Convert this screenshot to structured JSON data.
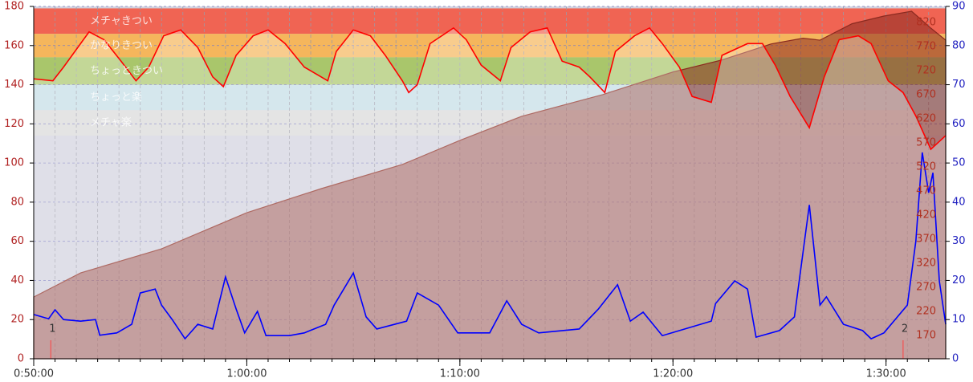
{
  "chart_data": {
    "type": "line",
    "xlim": [
      50,
      92.8
    ],
    "xticks": [
      {
        "value": 50,
        "label": "0:50:00"
      },
      {
        "value": 60,
        "label": "1:00:00"
      },
      {
        "value": 70,
        "label": "1:10:00"
      },
      {
        "value": 80,
        "label": "1:20:00"
      },
      {
        "value": 90,
        "label": "1:30:00"
      }
    ],
    "xminor_step": 1,
    "ylim": [
      0,
      180
    ],
    "yticks": [
      0,
      20,
      40,
      60,
      80,
      100,
      120,
      140,
      160,
      180
    ],
    "y2lim": [
      0,
      90
    ],
    "y2ticks": [
      0,
      10,
      20,
      30,
      40,
      50,
      60,
      70,
      80,
      90
    ],
    "y3lim": [
      122,
      853
    ],
    "y3ticks": [
      170,
      220,
      270,
      320,
      370,
      420,
      470,
      520,
      570,
      620,
      670,
      720,
      770,
      820
    ],
    "grid": true,
    "zones": [
      {
        "label": "メチャきつい",
        "from": 166,
        "to": 179,
        "color": "#f06453"
      },
      {
        "label": "かなりきつい",
        "from": 154,
        "to": 166,
        "color": "#f5b65c"
      },
      {
        "label": "ちょっときつい",
        "from": 140,
        "to": 154,
        "color": "#a9c66b"
      },
      {
        "label": "ちょっと楽",
        "from": 127,
        "to": 140,
        "color": "#c3dde6"
      },
      {
        "label": "メチャ楽",
        "from": 114,
        "to": 127,
        "color": "#d8d8d8"
      }
    ],
    "markers": [
      {
        "x": 50.8,
        "label": "1"
      },
      {
        "x": 90.8,
        "label": "2"
      }
    ],
    "series": [
      {
        "type": "area",
        "axis": "y3",
        "color": "#8b2a20",
        "x": [
          50.0,
          52.2,
          56.0,
          60.0,
          63.5,
          67.3,
          70.0,
          72.9,
          76.7,
          80.0,
          82.3,
          84.6,
          86.1,
          86.9,
          88.4,
          89.9,
          91.2,
          92.1,
          92.8
        ],
        "values": [
          250,
          300,
          350,
          425,
          475,
          525,
          575,
          625,
          670,
          717,
          742,
          775,
          787,
          783,
          817,
          833,
          843,
          808,
          783
        ]
      },
      {
        "type": "line",
        "axis": "y",
        "color": "#ff0000",
        "x": [
          50.0,
          50.9,
          51.4,
          52.6,
          53.3,
          54.1,
          54.8,
          55.4,
          56.1,
          56.9,
          57.7,
          58.4,
          58.9,
          59.5,
          60.3,
          61.0,
          61.8,
          62.7,
          63.8,
          64.2,
          65.0,
          65.8,
          66.5,
          67.3,
          67.6,
          68.0,
          68.6,
          69.7,
          70.3,
          71.0,
          71.9,
          72.4,
          73.3,
          74.1,
          74.8,
          75.6,
          76.1,
          76.8,
          77.3,
          78.2,
          78.9,
          79.5,
          80.3,
          80.9,
          81.8,
          82.3,
          83.5,
          84.2,
          84.8,
          85.5,
          86.4,
          87.1,
          87.8,
          88.7,
          89.3,
          90.1,
          90.8,
          91.4,
          92.1,
          92.8
        ],
        "values": [
          143,
          142,
          149,
          167,
          163,
          152,
          142,
          149,
          165,
          168,
          159,
          144,
          139,
          155,
          165,
          168,
          161,
          149,
          142,
          157,
          168,
          165,
          155,
          142,
          136,
          140,
          161,
          169,
          163,
          150,
          142,
          159,
          167,
          169,
          152,
          149,
          144,
          136,
          157,
          165,
          169,
          161,
          149,
          134,
          131,
          155,
          161,
          161,
          150,
          134,
          118,
          144,
          163,
          165,
          161,
          142,
          136,
          124,
          107,
          114
        ]
      },
      {
        "type": "line",
        "axis": "y2",
        "color": "#0000ff",
        "x": [
          50.0,
          50.7,
          51.0,
          51.4,
          52.2,
          52.9,
          53.1,
          53.9,
          54.6,
          55.0,
          55.7,
          56.0,
          56.5,
          57.1,
          57.7,
          58.4,
          59.0,
          59.5,
          59.9,
          60.5,
          60.9,
          62.0,
          62.7,
          63.7,
          64.1,
          65.0,
          65.6,
          66.1,
          67.5,
          68.0,
          69.0,
          69.9,
          71.4,
          72.2,
          72.9,
          73.7,
          75.6,
          76.5,
          77.4,
          78.0,
          78.6,
          79.5,
          80.8,
          81.8,
          82.0,
          82.9,
          83.5,
          83.9,
          85.0,
          85.7,
          86.4,
          86.9,
          87.2,
          88.0,
          88.9,
          89.3,
          89.9,
          91.0,
          91.4,
          91.7,
          92.0,
          92.2,
          92.5,
          92.8
        ],
        "values": [
          11.3,
          10.2,
          12.5,
          10,
          9.6,
          10,
          6,
          6.6,
          8.8,
          16.8,
          17.8,
          13.7,
          10,
          5.1,
          8.8,
          7.6,
          20.9,
          12.7,
          6.6,
          12.1,
          5.9,
          5.9,
          6.6,
          8.8,
          13.7,
          21.9,
          10.7,
          7.6,
          9.6,
          16.8,
          13.7,
          6.6,
          6.6,
          14.8,
          8.8,
          6.6,
          7.6,
          12.7,
          18.9,
          9.6,
          11.9,
          5.9,
          8,
          9.6,
          14.1,
          19.9,
          17.8,
          5.5,
          7.2,
          10.7,
          39.3,
          13.7,
          15.8,
          8.8,
          7.2,
          5.1,
          6.6,
          13.7,
          30.1,
          52.7,
          42.4,
          47.5,
          19.9,
          8.8
        ]
      }
    ]
  }
}
